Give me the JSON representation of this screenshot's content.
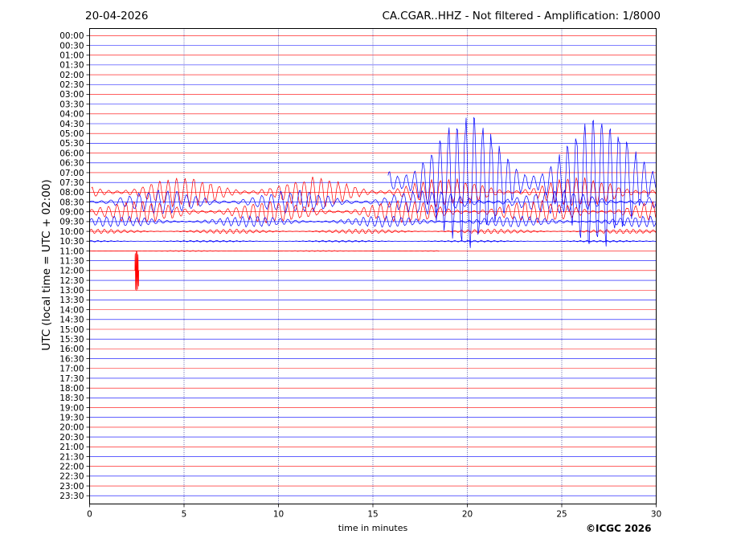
{
  "header": {
    "date": "20-04-2026",
    "title": "CA.CGAR..HHZ - Not filtered - Amplification: 1/8000"
  },
  "footer": {
    "copyright": "©ICGC 2026"
  },
  "chart_data": {
    "type": "line",
    "title": "CA.CGAR..HHZ - Not filtered - Amplification: 1/8000",
    "xlabel": "time in minutes",
    "ylabel": "UTC (local time = UTC + 02:00)",
    "xlim": [
      0,
      30
    ],
    "x_ticks": [
      0,
      5,
      10,
      15,
      20,
      25,
      30
    ],
    "grid": true,
    "trace_colors": {
      "even_rows": "#ff0000",
      "odd_rows": "#0000ff"
    },
    "rows": [
      "00:00",
      "00:30",
      "01:00",
      "01:30",
      "02:00",
      "02:30",
      "03:00",
      "03:30",
      "04:00",
      "04:30",
      "05:00",
      "05:30",
      "06:00",
      "06:30",
      "07:00",
      "07:30",
      "08:00",
      "08:30",
      "09:00",
      "09:30",
      "10:00",
      "10:30",
      "11:00",
      "11:30",
      "12:00",
      "12:30",
      "13:00",
      "13:30",
      "14:00",
      "14:30",
      "15:00",
      "15:30",
      "16:00",
      "16:30",
      "17:00",
      "17:30",
      "18:00",
      "18:30",
      "19:00",
      "19:30",
      "20:00",
      "20:30",
      "21:00",
      "21:30",
      "22:00",
      "22:30",
      "23:00",
      "23:30"
    ],
    "events": [
      {
        "row": "08:00",
        "x_start": 0.1,
        "x_end": 30,
        "amplitude_rows": 1.6,
        "period_min": 0.45,
        "note": "ongoing oscillation"
      },
      {
        "row": "08:30",
        "x_start": 0,
        "x_end": 30,
        "amplitude_rows": 1.3,
        "period_min": 0.5
      },
      {
        "row": "09:00",
        "x_start": 0,
        "x_end": 30,
        "amplitude_rows": 1.2,
        "period_min": 0.45
      },
      {
        "row": "09:30",
        "x_start": 0,
        "x_end": 30,
        "amplitude_rows": 0.6,
        "period_min": 0.4
      },
      {
        "row": "10:00",
        "x_start": 0,
        "x_end": 30,
        "amplitude_rows": 0.25,
        "period_min": 0.35
      },
      {
        "row": "10:30",
        "x_start": 0,
        "x_end": 30,
        "amplitude_rows": 0.1,
        "period_min": 0.35
      },
      {
        "row": "11:00",
        "x_start": 0,
        "x_end": 18.5,
        "amplitude_rows": 0.05,
        "period_min": 0.3
      },
      {
        "row": "12:00",
        "x_start": 2.4,
        "x_end": 2.6,
        "amplitude_rows": 2.3,
        "period_min": 0.05,
        "note": "spike"
      },
      {
        "row": "07:30",
        "x_start": 15.8,
        "x_end": 30,
        "amplitude_rows": 7.2,
        "period_min": 0.45,
        "note": "large blue excursions"
      }
    ]
  }
}
